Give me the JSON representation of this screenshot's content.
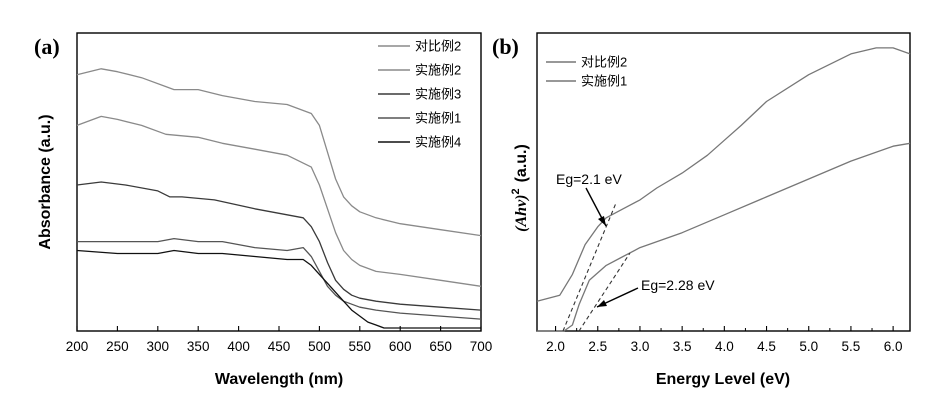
{
  "chart_data": [
    {
      "type": "line",
      "panel_label": "(a)",
      "xlabel": "Wavelength (nm)",
      "ylabel": "Absorbance (a.u.)",
      "xlim": [
        200,
        700
      ],
      "ylim": [
        0,
        1
      ],
      "xticks": [
        "200",
        "250",
        "300",
        "350",
        "400",
        "450",
        "500",
        "550",
        "600",
        "650",
        "700"
      ],
      "yticks": [],
      "legend_placement": "top-right",
      "series": [
        {
          "name": "对比例2",
          "color": "#8a8a8a",
          "x": [
            200,
            230,
            250,
            280,
            310,
            320,
            350,
            380,
            420,
            460,
            490,
            500,
            510,
            520,
            530,
            540,
            550,
            570,
            600,
            650,
            700
          ],
          "y": [
            0.86,
            0.88,
            0.87,
            0.85,
            0.82,
            0.81,
            0.81,
            0.79,
            0.77,
            0.76,
            0.73,
            0.69,
            0.6,
            0.51,
            0.45,
            0.42,
            0.4,
            0.38,
            0.36,
            0.34,
            0.32
          ]
        },
        {
          "name": "实施例2",
          "color": "#8a8a8a",
          "x": [
            200,
            230,
            250,
            280,
            310,
            350,
            380,
            420,
            460,
            490,
            500,
            510,
            520,
            530,
            540,
            550,
            570,
            600,
            650,
            700
          ],
          "y": [
            0.69,
            0.72,
            0.71,
            0.69,
            0.66,
            0.65,
            0.63,
            0.61,
            0.59,
            0.55,
            0.49,
            0.41,
            0.33,
            0.27,
            0.24,
            0.22,
            0.2,
            0.19,
            0.17,
            0.15
          ]
        },
        {
          "name": "实施例3",
          "color": "#3a3a3a",
          "x": [
            200,
            230,
            260,
            300,
            315,
            330,
            370,
            420,
            460,
            480,
            490,
            500,
            510,
            520,
            530,
            540,
            550,
            570,
            600,
            650,
            700
          ],
          "y": [
            0.49,
            0.5,
            0.49,
            0.47,
            0.45,
            0.45,
            0.44,
            0.41,
            0.39,
            0.38,
            0.35,
            0.3,
            0.23,
            0.17,
            0.14,
            0.12,
            0.11,
            0.1,
            0.09,
            0.08,
            0.07
          ]
        },
        {
          "name": "实施例1",
          "color": "#555555",
          "x": [
            200,
            250,
            300,
            320,
            350,
            380,
            420,
            460,
            480,
            490,
            500,
            510,
            520,
            530,
            540,
            550,
            570,
            600,
            650,
            700
          ],
          "y": [
            0.3,
            0.3,
            0.3,
            0.31,
            0.3,
            0.3,
            0.28,
            0.27,
            0.28,
            0.25,
            0.2,
            0.15,
            0.12,
            0.1,
            0.09,
            0.08,
            0.07,
            0.06,
            0.05,
            0.04
          ]
        },
        {
          "name": "实施例4",
          "color": "#111111",
          "x": [
            200,
            250,
            300,
            320,
            350,
            380,
            420,
            460,
            480,
            490,
            500,
            510,
            520,
            530,
            540,
            550,
            560,
            570,
            580,
            600,
            650,
            700
          ],
          "y": [
            0.27,
            0.26,
            0.26,
            0.27,
            0.26,
            0.26,
            0.25,
            0.24,
            0.24,
            0.22,
            0.19,
            0.16,
            0.13,
            0.1,
            0.07,
            0.05,
            0.03,
            0.02,
            0.01,
            0.01,
            0.01,
            0.01
          ]
        }
      ]
    },
    {
      "type": "line",
      "panel_label": "(b)",
      "xlabel": "Energy Level (eV)",
      "ylabel_main": "(Ahν)",
      "ylabel_sup": "2",
      "ylabel_unit": "(a.u.)",
      "xlim": [
        1.78,
        6.2
      ],
      "ylim": [
        0,
        1
      ],
      "xticks": [
        "2.0",
        "2.5",
        "3.0",
        "3.5",
        "4.0",
        "4.5",
        "5.0",
        "5.5",
        "6.0"
      ],
      "legend_placement": "top-left",
      "series": [
        {
          "name": "对比例2",
          "color": "#777777",
          "x": [
            1.78,
            2.05,
            2.2,
            2.35,
            2.5,
            2.6,
            2.8,
            3.0,
            3.2,
            3.5,
            3.8,
            4.0,
            4.2,
            4.5,
            5.0,
            5.5,
            5.8,
            6.0,
            6.2
          ],
          "y": [
            0.1,
            0.12,
            0.19,
            0.29,
            0.35,
            0.38,
            0.41,
            0.44,
            0.48,
            0.53,
            0.59,
            0.64,
            0.69,
            0.77,
            0.86,
            0.93,
            0.95,
            0.95,
            0.93
          ]
        },
        {
          "name": "实施例1",
          "color": "#777777",
          "x": [
            1.78,
            2.1,
            2.2,
            2.28,
            2.4,
            2.6,
            2.8,
            3.0,
            3.5,
            4.0,
            4.5,
            5.0,
            5.5,
            6.0,
            6.2
          ],
          "y": [
            0.0,
            0.0,
            0.02,
            0.09,
            0.17,
            0.22,
            0.25,
            0.28,
            0.33,
            0.39,
            0.45,
            0.51,
            0.57,
            0.62,
            0.63
          ]
        }
      ],
      "annotations": [
        {
          "text": "Eg=2.1 eV",
          "x": 2.1
        },
        {
          "text": "Eg=2.28 eV",
          "x": 2.28
        }
      ]
    }
  ]
}
